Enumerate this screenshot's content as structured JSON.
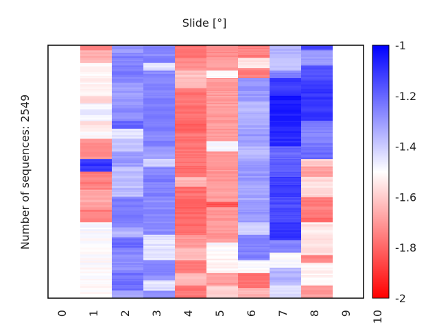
{
  "chart_data": {
    "type": "heatmap",
    "title": "Slide [°]",
    "xlabel": "",
    "ylabel": "Number of sequences: 2549",
    "x_ticks": [
      "0",
      "1",
      "2",
      "3",
      "4",
      "5",
      "6",
      "7",
      "8",
      "9",
      "10"
    ],
    "xlim": [
      0,
      10
    ],
    "n_rows": 2549,
    "colorbar": {
      "range": [
        -2,
        -1
      ],
      "ticks": [
        "-1",
        "-1.2",
        "-1.4",
        "-1.6",
        "-1.8",
        "-2"
      ],
      "tick_values": [
        -1,
        -1.2,
        -1.4,
        -1.6,
        -1.8,
        -2
      ],
      "colormap": [
        "#ff0000",
        "#ffffff",
        "#0000ff"
      ]
    },
    "columns": [
      {
        "x": 1,
        "bands": [
          [
            0,
            0.02,
            -1.75
          ],
          [
            0.02,
            0.07,
            -1.65
          ],
          [
            0.07,
            0.2,
            -1.52
          ],
          [
            0.2,
            0.23,
            -1.58
          ],
          [
            0.23,
            0.3,
            -1.47
          ],
          [
            0.3,
            0.34,
            -1.56
          ],
          [
            0.34,
            0.37,
            -1.5
          ],
          [
            0.37,
            0.45,
            -1.73
          ],
          [
            0.45,
            0.5,
            -1.1
          ],
          [
            0.5,
            0.57,
            -1.75
          ],
          [
            0.57,
            0.65,
            -1.68
          ],
          [
            0.65,
            0.7,
            -1.75
          ],
          [
            0.7,
            0.9,
            -1.5
          ],
          [
            0.9,
            1,
            -1.5
          ]
        ]
      },
      {
        "x": 2,
        "bands": [
          [
            0,
            0.03,
            -1.3
          ],
          [
            0.03,
            0.15,
            -1.25
          ],
          [
            0.15,
            0.25,
            -1.3
          ],
          [
            0.25,
            0.3,
            -1.28
          ],
          [
            0.3,
            0.33,
            -1.2
          ],
          [
            0.33,
            0.37,
            -1.45
          ],
          [
            0.37,
            0.42,
            -1.38
          ],
          [
            0.42,
            0.48,
            -1.3
          ],
          [
            0.48,
            0.6,
            -1.37
          ],
          [
            0.6,
            0.72,
            -1.25
          ],
          [
            0.72,
            0.76,
            -1.35
          ],
          [
            0.76,
            0.8,
            -1.2
          ],
          [
            0.8,
            0.9,
            -1.27
          ],
          [
            0.9,
            0.97,
            -1.22
          ],
          [
            0.97,
            1,
            -1.35
          ]
        ]
      },
      {
        "x": 3,
        "bands": [
          [
            0,
            0.07,
            -1.26
          ],
          [
            0.07,
            0.1,
            -1.44
          ],
          [
            0.1,
            0.17,
            -1.26
          ],
          [
            0.17,
            0.34,
            -1.25
          ],
          [
            0.34,
            0.4,
            -1.26
          ],
          [
            0.4,
            0.45,
            -1.3
          ],
          [
            0.45,
            0.48,
            -1.42
          ],
          [
            0.48,
            0.6,
            -1.25
          ],
          [
            0.6,
            0.75,
            -1.27
          ],
          [
            0.75,
            0.85,
            -1.45
          ],
          [
            0.85,
            0.93,
            -1.27
          ],
          [
            0.93,
            0.97,
            -1.45
          ],
          [
            0.97,
            1,
            -1.27
          ]
        ]
      },
      {
        "x": 4,
        "bands": [
          [
            0,
            0.05,
            -1.78
          ],
          [
            0.05,
            0.1,
            -1.72
          ],
          [
            0.1,
            0.17,
            -1.62
          ],
          [
            0.17,
            0.3,
            -1.78
          ],
          [
            0.3,
            0.35,
            -1.8
          ],
          [
            0.35,
            0.45,
            -1.77
          ],
          [
            0.45,
            0.52,
            -1.78
          ],
          [
            0.52,
            0.56,
            -1.65
          ],
          [
            0.56,
            0.6,
            -1.78
          ],
          [
            0.6,
            0.75,
            -1.8
          ],
          [
            0.75,
            0.8,
            -1.7
          ],
          [
            0.8,
            0.85,
            -1.63
          ],
          [
            0.85,
            0.9,
            -1.77
          ],
          [
            0.9,
            0.95,
            -1.65
          ],
          [
            0.95,
            1,
            -1.77
          ]
        ]
      },
      {
        "x": 5,
        "bands": [
          [
            0,
            0.05,
            -1.72
          ],
          [
            0.05,
            0.1,
            -1.7
          ],
          [
            0.1,
            0.13,
            -1.5
          ],
          [
            0.13,
            0.33,
            -1.7
          ],
          [
            0.33,
            0.38,
            -1.7
          ],
          [
            0.38,
            0.42,
            -1.5
          ],
          [
            0.42,
            0.5,
            -1.7
          ],
          [
            0.5,
            0.62,
            -1.7
          ],
          [
            0.62,
            0.64,
            -1.85
          ],
          [
            0.64,
            0.78,
            -1.7
          ],
          [
            0.78,
            0.82,
            -1.5
          ],
          [
            0.82,
            0.9,
            -1.52
          ],
          [
            0.9,
            0.95,
            -1.7
          ],
          [
            0.95,
            1,
            -1.6
          ]
        ]
      },
      {
        "x": 6,
        "bands": [
          [
            0,
            0.05,
            -1.75
          ],
          [
            0.05,
            0.09,
            -1.55
          ],
          [
            0.09,
            0.13,
            -1.75
          ],
          [
            0.13,
            0.22,
            -1.3
          ],
          [
            0.22,
            0.28,
            -1.35
          ],
          [
            0.28,
            0.34,
            -1.33
          ],
          [
            0.34,
            0.4,
            -1.3
          ],
          [
            0.4,
            0.45,
            -1.36
          ],
          [
            0.45,
            0.55,
            -1.3
          ],
          [
            0.55,
            0.62,
            -1.33
          ],
          [
            0.62,
            0.7,
            -1.3
          ],
          [
            0.7,
            0.75,
            -1.4
          ],
          [
            0.75,
            0.85,
            -1.25
          ],
          [
            0.85,
            0.9,
            -1.5
          ],
          [
            0.9,
            0.96,
            -1.78
          ],
          [
            0.96,
            1,
            -1.65
          ]
        ]
      },
      {
        "x": 7,
        "bands": [
          [
            0,
            0.05,
            -1.35
          ],
          [
            0.05,
            0.1,
            -1.4
          ],
          [
            0.1,
            0.13,
            -1.25
          ],
          [
            0.13,
            0.2,
            -1.12
          ],
          [
            0.2,
            0.3,
            -1.05
          ],
          [
            0.3,
            0.4,
            -1.08
          ],
          [
            0.4,
            0.45,
            -1.2
          ],
          [
            0.45,
            0.52,
            -1.17
          ],
          [
            0.52,
            0.6,
            -1.12
          ],
          [
            0.6,
            0.7,
            -1.15
          ],
          [
            0.7,
            0.77,
            -1.1
          ],
          [
            0.77,
            0.82,
            -1.25
          ],
          [
            0.82,
            0.88,
            -1.5
          ],
          [
            0.88,
            0.95,
            -1.35
          ],
          [
            0.95,
            1,
            -1.45
          ]
        ]
      },
      {
        "x": 8,
        "bands": [
          [
            0,
            0.02,
            -1.15
          ],
          [
            0.02,
            0.08,
            -1.3
          ],
          [
            0.08,
            0.15,
            -1.15
          ],
          [
            0.15,
            0.3,
            -1.1
          ],
          [
            0.3,
            0.4,
            -1.25
          ],
          [
            0.4,
            0.45,
            -1.2
          ],
          [
            0.45,
            0.48,
            -1.6
          ],
          [
            0.48,
            0.52,
            -1.7
          ],
          [
            0.52,
            0.6,
            -1.57
          ],
          [
            0.6,
            0.65,
            -1.75
          ],
          [
            0.65,
            0.7,
            -1.78
          ],
          [
            0.7,
            0.83,
            -1.55
          ],
          [
            0.83,
            0.86,
            -1.75
          ],
          [
            0.86,
            0.95,
            -1.52
          ],
          [
            0.95,
            1,
            -1.7
          ]
        ]
      }
    ]
  }
}
